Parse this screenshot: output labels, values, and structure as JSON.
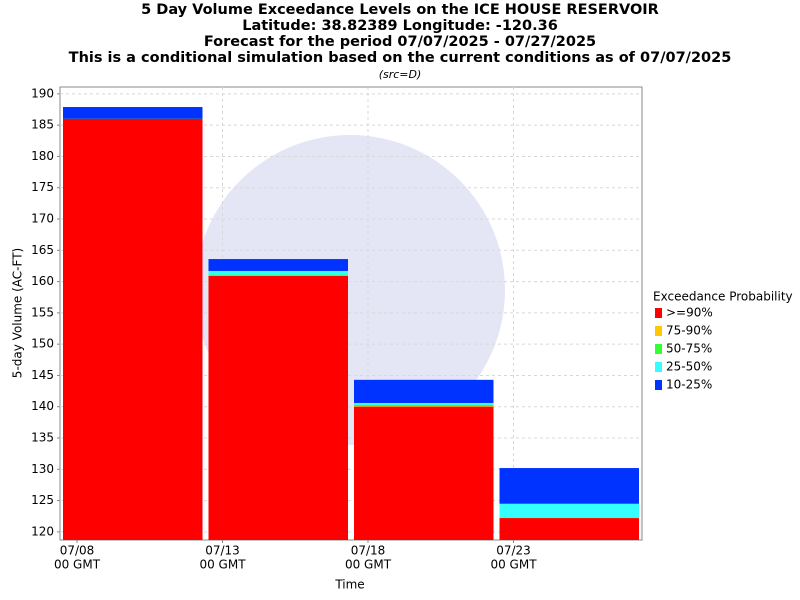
{
  "chart_data": {
    "type": "bar",
    "title": "5 Day Volume Exceedance Levels on the ICE HOUSE RESERVOIR",
    "subtitles": [
      "Latitude: 38.82389 Longitude: -120.36",
      "Forecast for the period 07/07/2025 - 07/27/2025",
      "This is a conditional simulation based on the current conditions as of 07/07/2025"
    ],
    "note": "(src=D)",
    "x_label": "Time",
    "y_label": "5-day Volume (AC-FT)",
    "categories": [
      "07/08",
      "07/13",
      "07/18",
      "07/23"
    ],
    "category_sublabel": "00 GMT",
    "legend_title": "Exceedance Probability",
    "series": [
      {
        "name": ">=90%",
        "color": "#ff0000",
        "values": [
          186.0,
          160.9,
          140.0,
          122.2
        ]
      },
      {
        "name": "75-90%",
        "color": "#ffc800",
        "values": [
          186.0,
          161.0,
          140.1,
          122.3
        ]
      },
      {
        "name": "50-75%",
        "color": "#33ff33",
        "values": [
          186.0,
          161.1,
          140.3,
          122.3
        ]
      },
      {
        "name": "25-50%",
        "color": "#33ffff",
        "values": [
          186.0,
          161.7,
          140.6,
          124.5
        ]
      },
      {
        "name": "10-25%",
        "color": "#0033ff",
        "values": [
          187.9,
          163.6,
          144.3,
          130.2
        ]
      }
    ],
    "ylim": [
      118.7,
      191.1
    ],
    "yticks": [
      120,
      125,
      130,
      135,
      140,
      145,
      150,
      155,
      160,
      165,
      170,
      175,
      180,
      185,
      190
    ],
    "grid": true
  }
}
